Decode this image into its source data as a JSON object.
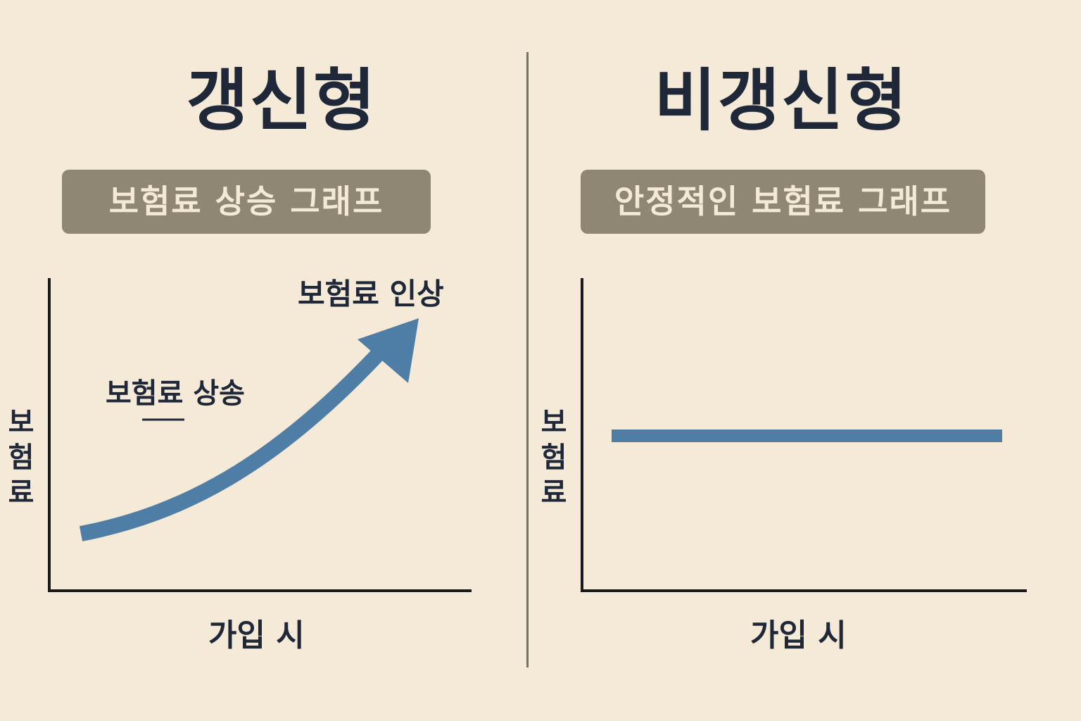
{
  "left_panel": {
    "title": "갱신형",
    "subtitle": "보험료 상승 그래프",
    "y_axis_label": "보험료",
    "x_axis_label": "가입 시",
    "annotation_top": "보험료 인상",
    "annotation_mid": "보험료 상송",
    "line_trend": "rising"
  },
  "right_panel": {
    "title": "비갱신형",
    "subtitle": "안정적인 보험료 그래프",
    "y_axis_label": "보험료",
    "x_axis_label": "가입 시",
    "line_trend": "flat"
  },
  "colors": {
    "background": "#f5e9d7",
    "title_text": "#1e2838",
    "subtitle_box": "#8f8673",
    "subtitle_text": "#f3e9d6",
    "line": "#4e7ea6",
    "axis": "#1a1a1a",
    "divider": "#77705f"
  }
}
